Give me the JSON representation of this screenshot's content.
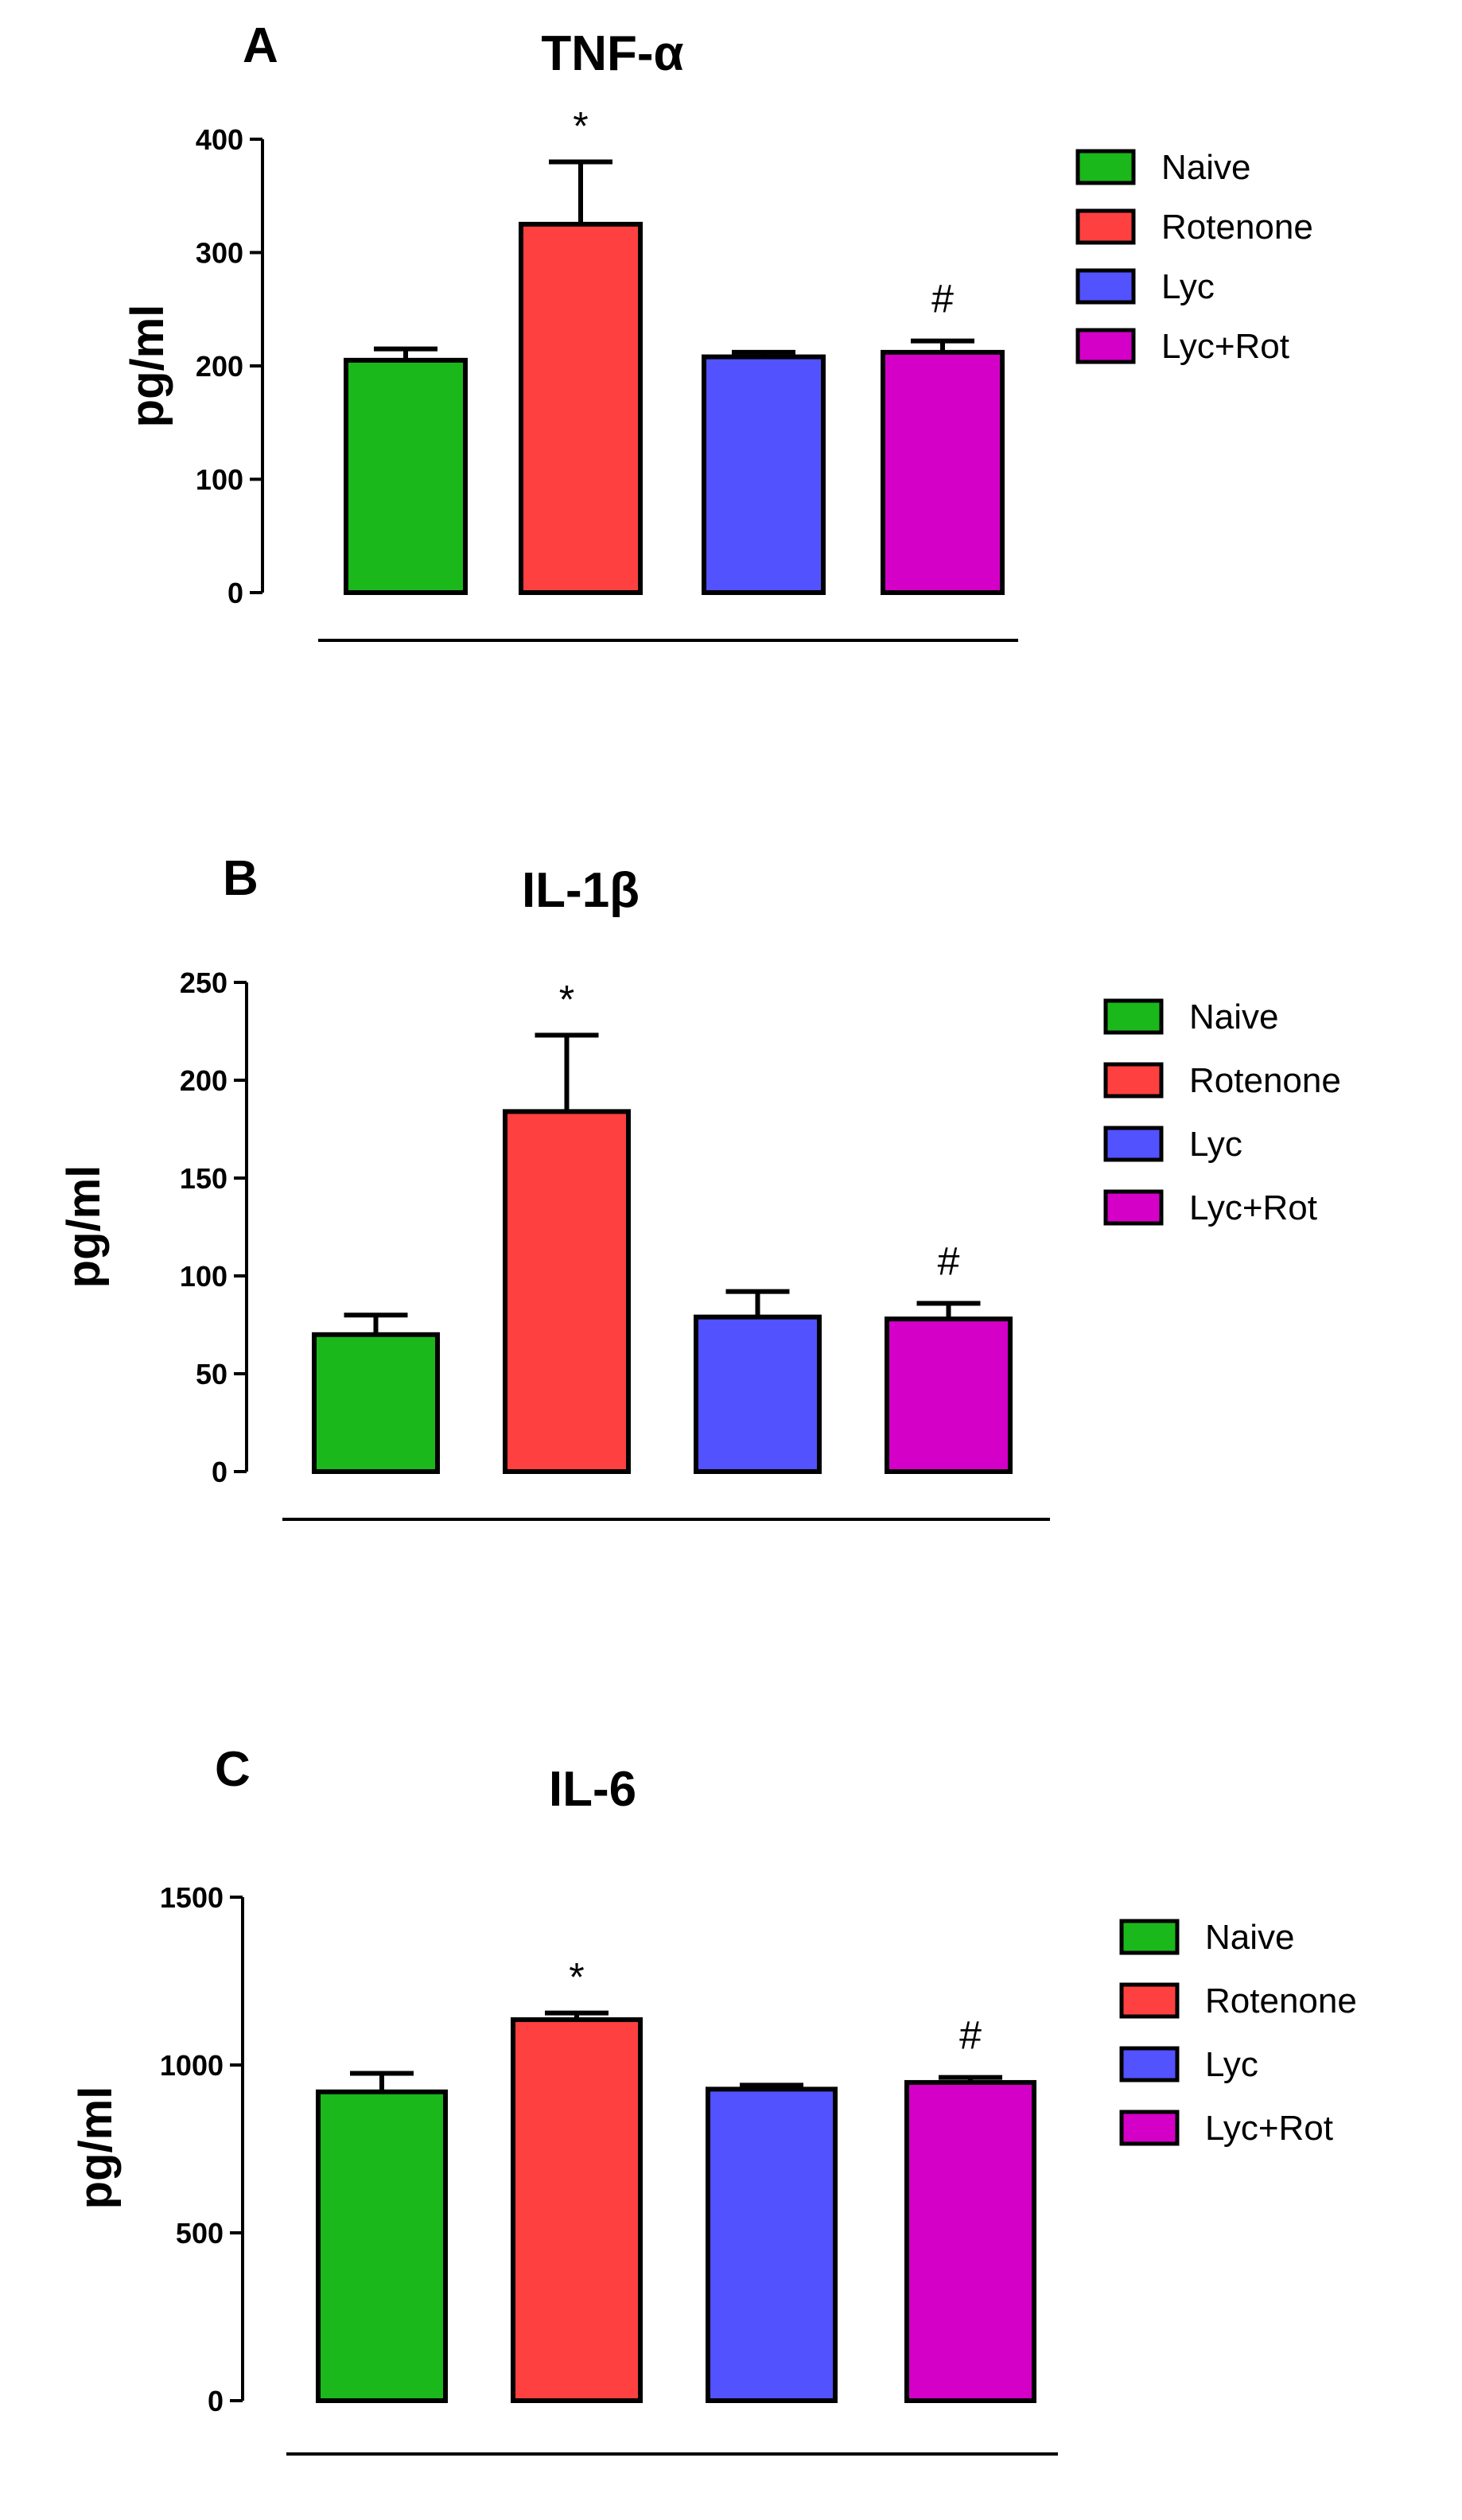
{
  "chart_data": [
    {
      "type": "bar",
      "panel": "A",
      "title": "TNF-α",
      "xlabel": "",
      "ylabel": "pg/ml",
      "ylim": [
        0,
        400
      ],
      "yticks": [
        "0",
        "100",
        "200",
        "300",
        "400"
      ],
      "categories": [
        "Naive",
        "Rotenone",
        "Lyc",
        "Lyc+Rot"
      ],
      "values": [
        205,
        325,
        208,
        212
      ],
      "errors": [
        10,
        55,
        4,
        10
      ],
      "annotations": [
        "",
        "*",
        "",
        "#"
      ],
      "colors": [
        "#1ab81a",
        "#ff4040",
        "#5252ff",
        "#d400c8"
      ],
      "legend": [
        "Naive",
        "Rotenone",
        "Lyc",
        "Lyc+Rot"
      ],
      "legend_position": "right"
    },
    {
      "type": "bar",
      "panel": "B",
      "title": "IL-1β",
      "xlabel": "",
      "ylabel": "pg/ml",
      "ylim": [
        0,
        250
      ],
      "yticks": [
        "0",
        "50",
        "100",
        "150",
        "200",
        "250"
      ],
      "categories": [
        "Naive",
        "Rotenone",
        "Lyc",
        "Lyc+Rot"
      ],
      "values": [
        70,
        184,
        79,
        78
      ],
      "errors": [
        10,
        39,
        13,
        8
      ],
      "annotations": [
        "",
        "*",
        "",
        "#"
      ],
      "colors": [
        "#1ab81a",
        "#ff4040",
        "#5252ff",
        "#d400c8"
      ],
      "legend": [
        "Naive",
        "Rotenone",
        "Lyc",
        "Lyc+Rot"
      ],
      "legend_position": "right"
    },
    {
      "type": "bar",
      "panel": "C",
      "title": "IL-6",
      "xlabel": "",
      "ylabel": "pg/ml",
      "ylim": [
        0,
        1500
      ],
      "yticks": [
        "0",
        "500",
        "1000",
        "1500"
      ],
      "categories": [
        "Naive",
        "Rotenone",
        "Lyc",
        "Lyc+Rot"
      ],
      "values": [
        920,
        1135,
        928,
        948
      ],
      "errors": [
        55,
        20,
        12,
        15
      ],
      "annotations": [
        "",
        "*",
        "",
        "#"
      ],
      "colors": [
        "#1ab81a",
        "#ff4040",
        "#5252ff",
        "#d400c8"
      ],
      "legend": [
        "Naive",
        "Rotenone",
        "Lyc",
        "Lyc+Rot"
      ],
      "legend_position": "right"
    }
  ]
}
